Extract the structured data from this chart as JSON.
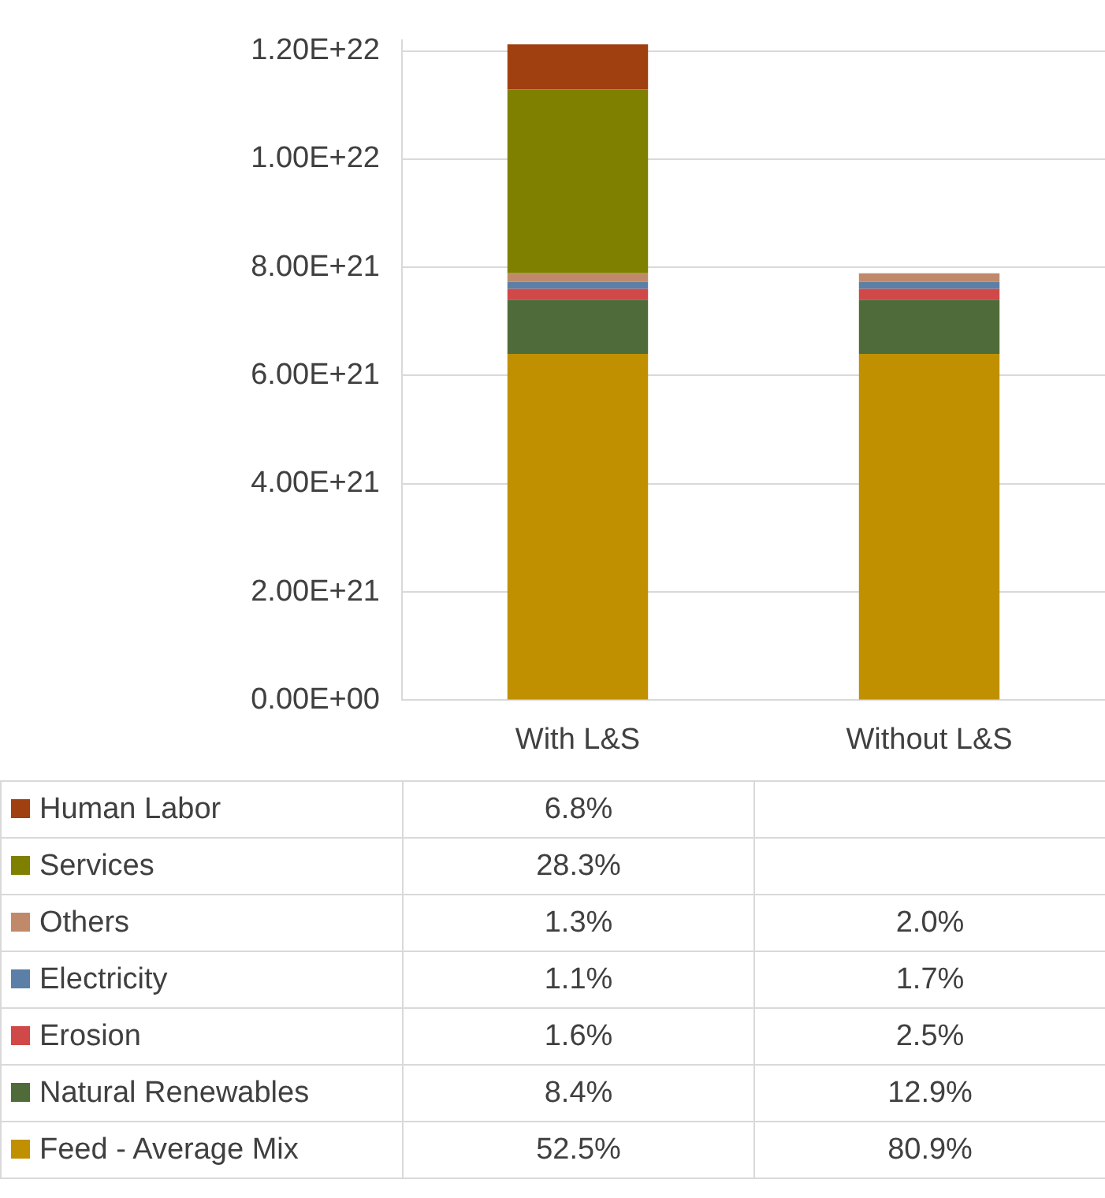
{
  "chart_data": {
    "type": "bar",
    "stacked": true,
    "categories": [
      "With L&S",
      "Without L&S"
    ],
    "ylim": [
      0,
      1.22e+22
    ],
    "yticks": [
      {
        "value": 0,
        "label": "0.00E+00"
      },
      {
        "value": 2e+21,
        "label": "2.00E+21"
      },
      {
        "value": 4e+21,
        "label": "4.00E+21"
      },
      {
        "value": 6e+21,
        "label": "6.00E+21"
      },
      {
        "value": 8e+21,
        "label": "8.00E+21"
      },
      {
        "value": 1e+22,
        "label": "1.00E+22"
      },
      {
        "value": 1.2e+22,
        "label": "1.20E+22"
      }
    ],
    "grid": "y",
    "legend": "bottom",
    "series": [
      {
        "name": "Feed - Average Mix",
        "color": "#c09000",
        "values": [
          6.4e+21,
          6.4e+21
        ]
      },
      {
        "name": "Natural Renewables",
        "color": "#4f6b3a",
        "values": [
          1e+21,
          1e+21
        ]
      },
      {
        "name": "Erosion",
        "color": "#d04848",
        "values": [
          2e+20,
          2e+20
        ]
      },
      {
        "name": "Electricity",
        "color": "#5b7fa6",
        "values": [
          1.3e+20,
          1.3e+20
        ]
      },
      {
        "name": "Others",
        "color": "#c08a6a",
        "values": [
          1.6e+20,
          1.6e+20
        ]
      },
      {
        "name": "Services",
        "color": "#808000",
        "values": [
          3.4e+21,
          null
        ]
      },
      {
        "name": "Human Labor",
        "color": "#a04010",
        "values": [
          8.3e+20,
          null
        ]
      }
    ],
    "annotations": [
      "6.8%",
      "28.3%",
      "1.3%",
      "2.0%",
      "1.1%",
      "1.7%",
      "1.6%",
      "2.5%",
      "8.4%",
      "12.9%",
      "52.5%",
      "80.9%"
    ]
  }
}
